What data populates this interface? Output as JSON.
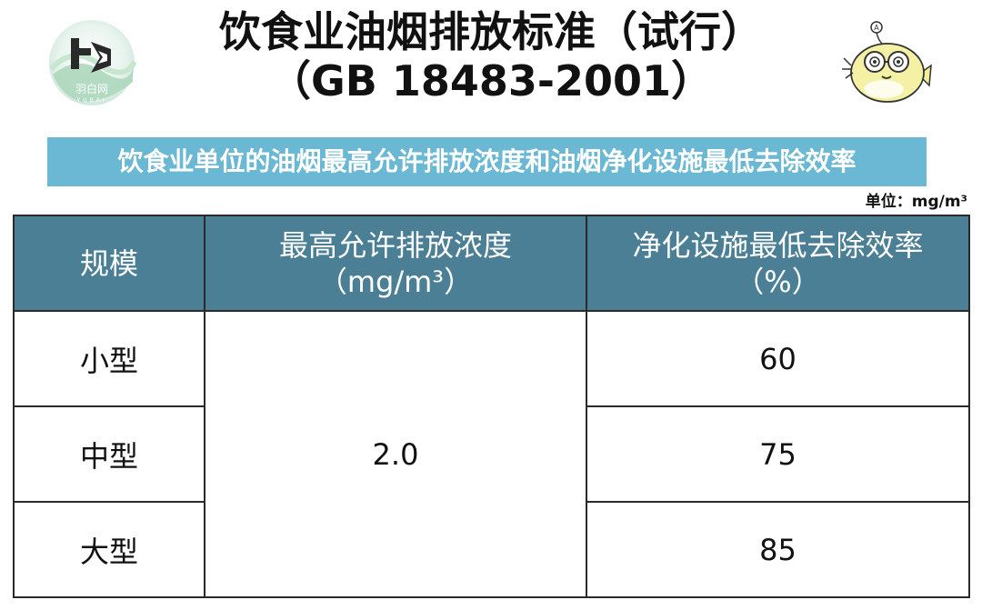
{
  "logo": {
    "text": "羽白网",
    "subtext": "YUBAI"
  },
  "title": {
    "line1": "饮食业油烟排放标准（试行）",
    "line2": "（GB 18483-2001）"
  },
  "subtitle": "饮食业单位的油烟最高允许排放浓度和油烟净化设施最低去除效率",
  "unit": "单位：mg/m³",
  "table": {
    "headers": [
      {
        "line1": "规模",
        "line2": ""
      },
      {
        "line1": "最高允许排放浓度",
        "line2": "（mg/m³）"
      },
      {
        "line1": "净化设施最低去除效率",
        "line2": "（%）"
      }
    ],
    "rows": [
      {
        "scale": "小型",
        "efficiency": "60"
      },
      {
        "scale": "中型",
        "efficiency": "75"
      },
      {
        "scale": "大型",
        "efficiency": "85"
      }
    ],
    "max_concentration": "2.0"
  },
  "colors": {
    "header_bg": "#4b7f95",
    "subtitle_bg": "#6ab8d4",
    "border": "#2a2a2a"
  },
  "icons": [
    "yubai-logo-icon",
    "fish-mascot-icon"
  ]
}
